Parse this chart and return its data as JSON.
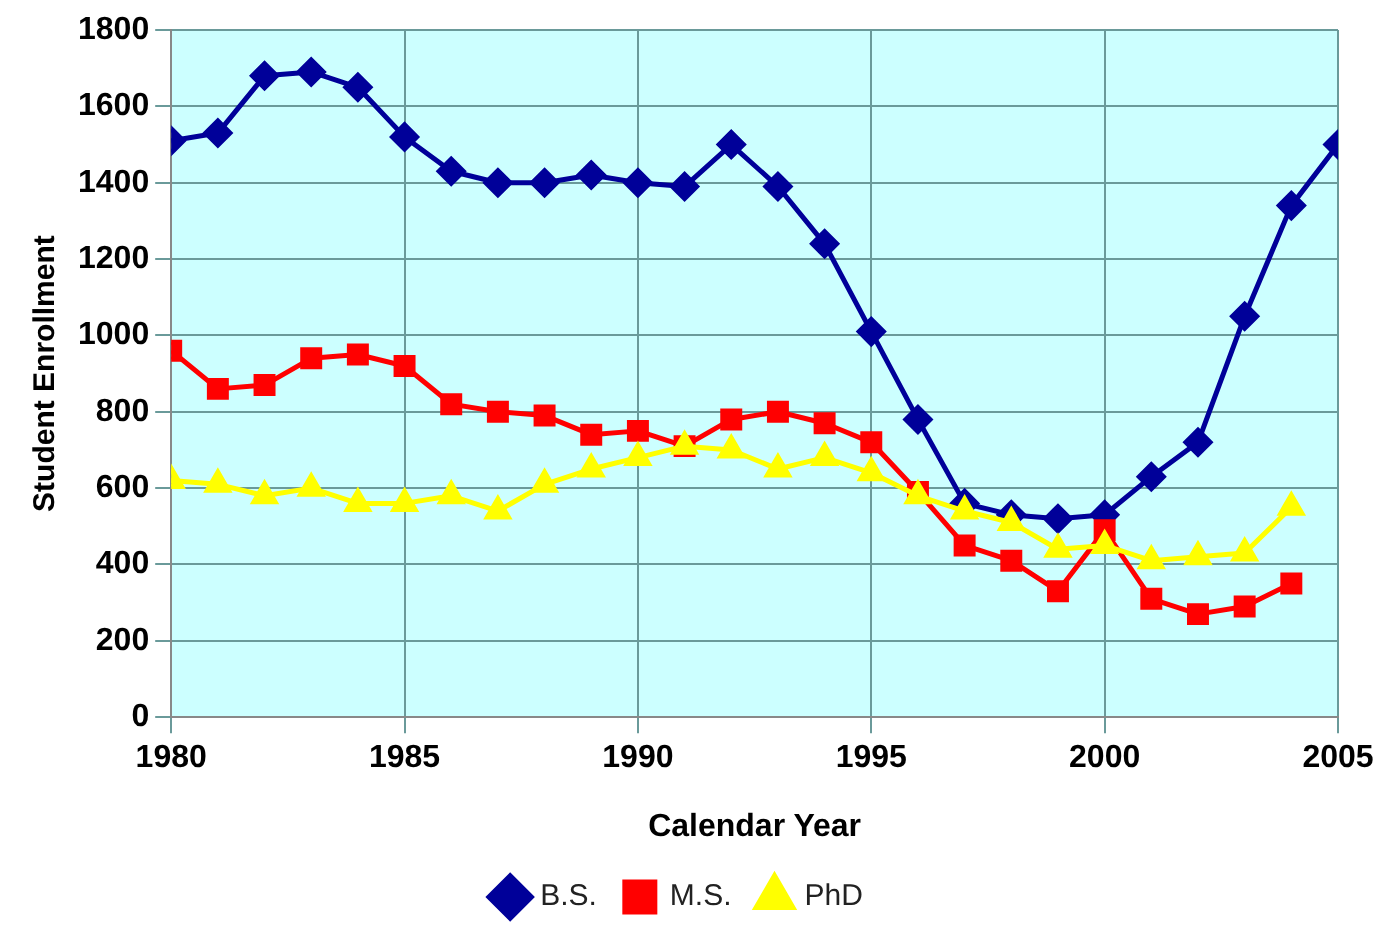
{
  "chart_data": {
    "type": "line",
    "xlabel": "Calendar Year",
    "ylabel": "Student Enrollment",
    "x": [
      1980,
      1981,
      1982,
      1983,
      1984,
      1985,
      1986,
      1987,
      1988,
      1989,
      1990,
      1991,
      1992,
      1993,
      1994,
      1995,
      1996,
      1997,
      1998,
      1999,
      2000,
      2001,
      2002,
      2003,
      2004,
      2005
    ],
    "series": [
      {
        "name": "B.S.",
        "color": "#000099",
        "marker": "diamond",
        "values": [
          1510,
          1530,
          1680,
          1690,
          1650,
          1520,
          1430,
          1400,
          1400,
          1420,
          1400,
          1390,
          1500,
          1390,
          1240,
          1010,
          780,
          560,
          530,
          520,
          530,
          630,
          720,
          1050,
          1340,
          1500
        ]
      },
      {
        "name": "M.S.",
        "color": "#ff0000",
        "marker": "square",
        "values": [
          960,
          860,
          870,
          940,
          950,
          920,
          820,
          800,
          790,
          740,
          750,
          710,
          780,
          800,
          770,
          720,
          590,
          450,
          410,
          330,
          490,
          310,
          270,
          290,
          350,
          null
        ]
      },
      {
        "name": "PhD",
        "color": "#ffff00",
        "marker": "triangle",
        "values": [
          620,
          610,
          580,
          600,
          560,
          560,
          580,
          540,
          610,
          650,
          680,
          710,
          700,
          650,
          680,
          640,
          580,
          540,
          510,
          440,
          450,
          410,
          420,
          430,
          550,
          null
        ]
      }
    ],
    "xlim": [
      1980,
      2005
    ],
    "xticks": [
      1980,
      1985,
      1990,
      1995,
      2000,
      2005
    ],
    "ylim": [
      0,
      1800
    ],
    "yticks": [
      0,
      200,
      400,
      600,
      800,
      1000,
      1200,
      1400,
      1600,
      1800
    ],
    "grid": true,
    "legend": "bottom",
    "line_style": "solid"
  }
}
